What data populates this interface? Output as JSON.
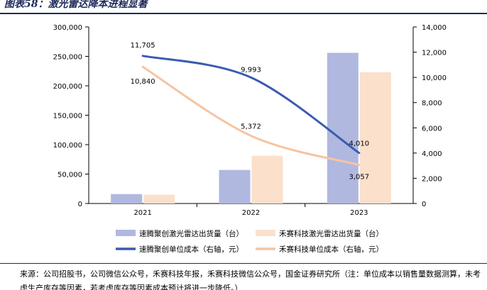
{
  "figure_title": "图表58：激光雷达降本进程显著",
  "source_note": "来源：公司招股书，公司微信公众号，禾赛科技年报，禾赛科技微信公众号，国金证券研究所（注：单位成本以销售量数据测算，未考虑生产库存等因素，若考虑库存等因素成本预计将进一步降低。）",
  "colors": {
    "bar_sagitar": "#b0b8e0",
    "bar_hesai": "#fbe0cc",
    "line_sagitar": "#3a5bb0",
    "line_hesai": "#f6c4a2",
    "title": "#1f2a5a"
  },
  "chart_data": {
    "type": "bar+line",
    "categories": [
      "2021",
      "2022",
      "2023"
    ],
    "left_axis": {
      "min": 0,
      "max": 300000,
      "step": 50000,
      "ticks": [
        "0",
        "50,000",
        "100,000",
        "150,000",
        "200,000",
        "250,000",
        "300,000"
      ]
    },
    "right_axis": {
      "min": 0,
      "max": 14000,
      "step": 2000,
      "ticks": [
        "0",
        "2,000",
        "4,000",
        "6,000",
        "8,000",
        "10,000",
        "12,000",
        "14,000"
      ]
    },
    "bar_series": [
      {
        "name": "速腾聚创激光雷达出货量（台）",
        "values": [
          16000,
          57000,
          256000
        ]
      },
      {
        "name": "禾赛科技激光雷达出货量（台）",
        "values": [
          15000,
          81000,
          223000
        ]
      }
    ],
    "line_series": [
      {
        "name": "速腾聚创单位成本（右轴，元）",
        "values": [
          11705,
          9993,
          4010
        ],
        "labels": [
          "11,705",
          "9,993",
          "4,010"
        ]
      },
      {
        "name": "禾赛科技单位成本（右轴，元）",
        "values": [
          10840,
          5372,
          3057
        ],
        "labels": [
          "10,840",
          "5,372",
          "3,057"
        ]
      }
    ],
    "legend_position": "bottom",
    "grid": false
  }
}
